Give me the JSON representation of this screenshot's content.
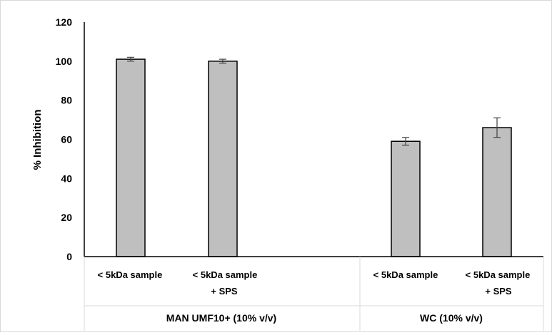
{
  "chart_data": {
    "type": "bar",
    "title": "",
    "ylabel": "% Inhibition",
    "xlabel": "",
    "ylim": [
      0,
      120
    ],
    "yticks": [
      0,
      20,
      40,
      60,
      80,
      100,
      120
    ],
    "grid": false,
    "legend": "none",
    "bar_color": "#bfbfbf",
    "bar_edge_color": "#000000",
    "categories": [
      {
        "line1": "< 5kDa sample",
        "line2": ""
      },
      {
        "line1": "< 5kDa sample",
        "line2": "+ SPS"
      },
      {
        "line1": "< 5kDa sample",
        "line2": ""
      },
      {
        "line1": "< 5kDa sample",
        "line2": "+ SPS"
      }
    ],
    "groups": [
      {
        "label": "MAN UMF10+ (10% v/v)",
        "categories": [
          0,
          1
        ]
      },
      {
        "label": "WC (10% v/v)",
        "categories": [
          2,
          3
        ]
      }
    ],
    "series": [
      {
        "values": [
          101,
          100,
          59,
          66
        ],
        "errors": [
          1,
          1,
          2,
          5
        ]
      }
    ]
  }
}
